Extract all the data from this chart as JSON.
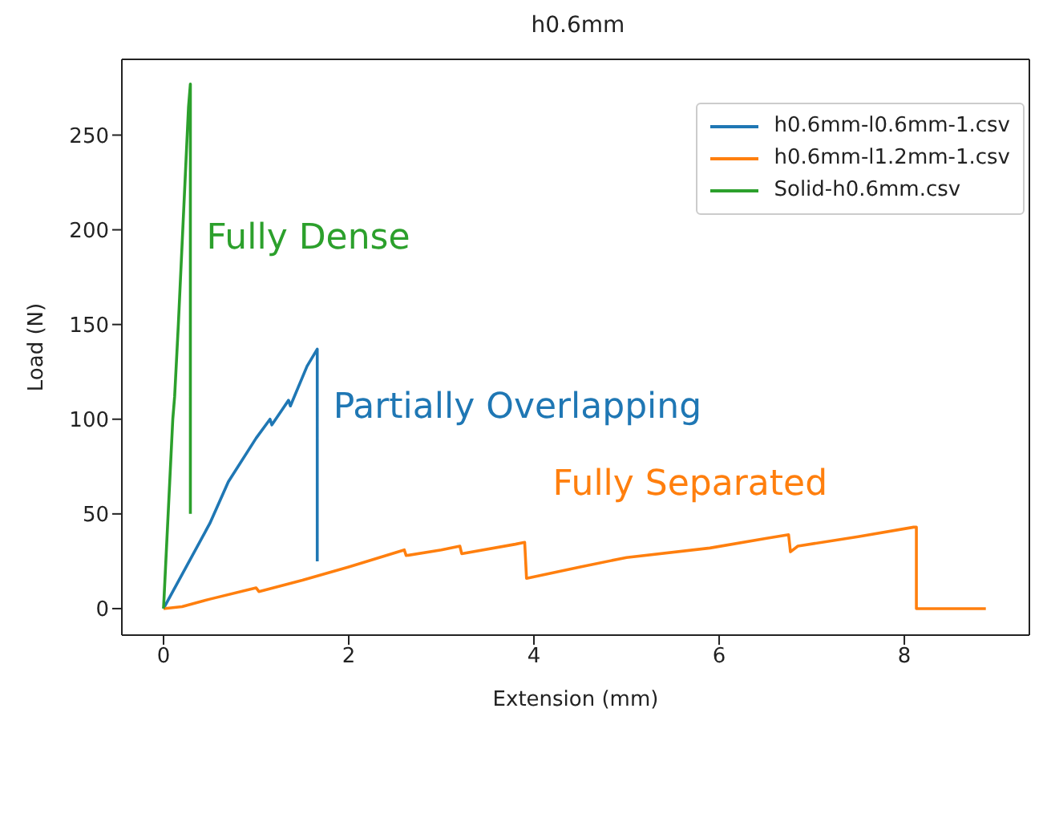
{
  "chart_data": {
    "type": "line",
    "title": "h0.6mm",
    "xlabel": "Extension (mm)",
    "ylabel": "Load (N)",
    "xlim": [
      -0.45,
      9.35
    ],
    "ylim": [
      -14,
      290
    ],
    "xticks": [
      0,
      2,
      4,
      6,
      8
    ],
    "yticks": [
      0,
      50,
      100,
      150,
      200,
      250
    ],
    "legend": "top right",
    "grid": false,
    "marker": "none",
    "line_style": "solid",
    "series": [
      {
        "name": "h0.6mm-l0.6mm-1.csv",
        "color": "#1f77b4",
        "x": [
          0,
          0.5,
          0.7,
          1.0,
          1.15,
          1.17,
          1.35,
          1.37,
          1.55,
          1.66,
          1.66
        ],
        "values": [
          0,
          45,
          67,
          90,
          100,
          97,
          110,
          107,
          128,
          137,
          25
        ]
      },
      {
        "name": "h0.6mm-l1.2mm-1.csv",
        "color": "#ff7f0e",
        "x": [
          0,
          0.2,
          0.5,
          1.0,
          1.03,
          1.5,
          2.0,
          2.6,
          2.62,
          3.0,
          3.2,
          3.22,
          3.8,
          3.9,
          3.92,
          4.5,
          5.0,
          5.9,
          6.5,
          6.75,
          6.77,
          6.85,
          7.5,
          8.1,
          8.13,
          8.13,
          8.88
        ],
        "values": [
          0,
          1,
          5,
          11,
          9,
          15,
          22,
          31,
          28,
          31,
          33,
          29,
          34,
          35,
          16,
          22,
          27,
          32,
          37,
          39,
          30,
          33,
          38,
          43,
          43,
          0,
          0
        ]
      },
      {
        "name": "Solid-h0.6mm.csv",
        "color": "#2ca02c",
        "x": [
          0,
          0.1,
          0.12,
          0.16,
          0.27,
          0.29,
          0.29
        ],
        "values": [
          0,
          100,
          112,
          150,
          265,
          277,
          50
        ]
      }
    ],
    "annotations": [
      "Partially Overlapping",
      "Fully Separated",
      "Fully Dense"
    ]
  }
}
